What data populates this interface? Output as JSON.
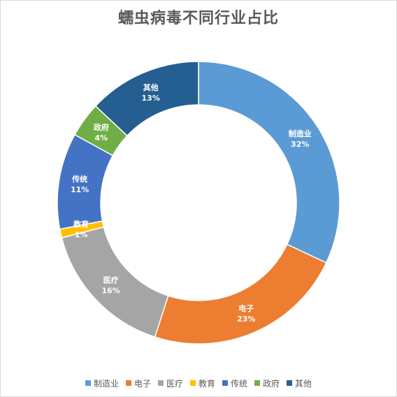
{
  "chart_data": {
    "type": "pie",
    "style": "donut",
    "title": "蠕虫病毒不同行业占比",
    "categories": [
      "制造业",
      "电子",
      "医疗",
      "教育",
      "传统",
      "政府",
      "其他"
    ],
    "values": [
      32,
      23,
      16,
      1,
      11,
      4,
      13
    ],
    "value_labels": [
      "32%",
      "23%",
      "16%",
      "1%",
      "11%",
      "4%",
      "13%"
    ],
    "colors": [
      "#5b9bd5",
      "#ed7d31",
      "#a5a5a5",
      "#ffc000",
      "#4472c4",
      "#70ad47",
      "#255e91"
    ],
    "legend_position": "bottom"
  }
}
